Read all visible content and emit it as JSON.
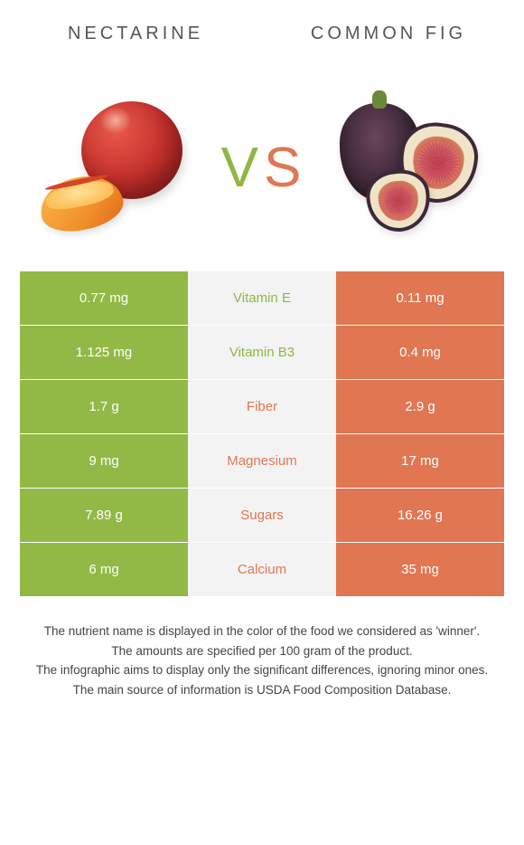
{
  "colors": {
    "left": "#92b946",
    "right": "#e07752",
    "mid_bg": "#f3f3f3",
    "left_text": "#8fb842",
    "right_text": "#e07752"
  },
  "header": {
    "left_title": "NECTARINE",
    "right_title": "COMMON FIG"
  },
  "vs": {
    "v": "V",
    "s": "S"
  },
  "rows": [
    {
      "left": "0.77 mg",
      "label": "Vitamin E",
      "right": "0.11 mg",
      "winner": "left"
    },
    {
      "left": "1.125 mg",
      "label": "Vitamin B3",
      "right": "0.4 mg",
      "winner": "left"
    },
    {
      "left": "1.7 g",
      "label": "Fiber",
      "right": "2.9 g",
      "winner": "right"
    },
    {
      "left": "9 mg",
      "label": "Magnesium",
      "right": "17 mg",
      "winner": "right"
    },
    {
      "left": "7.89 g",
      "label": "Sugars",
      "right": "16.26 g",
      "winner": "right"
    },
    {
      "left": "6 mg",
      "label": "Calcium",
      "right": "35 mg",
      "winner": "right"
    }
  ],
  "footnotes": [
    "The nutrient name is displayed in the color of the food we considered as 'winner'.",
    "The amounts are specified per 100 gram of the product.",
    "The infographic aims to display only the significant differences, ignoring minor ones.",
    "The main source of information is USDA Food Composition Database."
  ]
}
